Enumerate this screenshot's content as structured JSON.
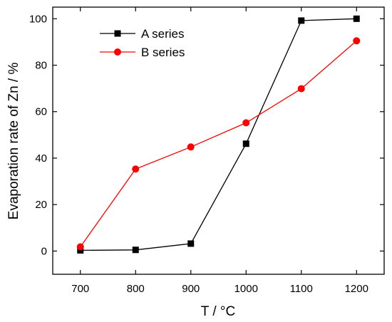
{
  "chart_data": {
    "type": "line",
    "xlabel": "T / °C",
    "ylabel": "Evaporation rate of Zn  / %",
    "xlim": [
      650,
      1250
    ],
    "ylim": [
      -10,
      105
    ],
    "x_ticks": [
      700,
      800,
      900,
      1000,
      1100,
      1200
    ],
    "y_ticks": [
      0,
      20,
      40,
      60,
      80,
      100
    ],
    "grid": false,
    "legend_position": "top-left",
    "series": [
      {
        "name": "A series",
        "color": "#000000",
        "marker": "square",
        "x": [
          700,
          800,
          900,
          1000,
          1100,
          1200
        ],
        "y": [
          0.3,
          0.5,
          3.2,
          46.2,
          99.2,
          100.0
        ]
      },
      {
        "name": "B series",
        "color": "#ff0000",
        "marker": "circle",
        "x": [
          700,
          800,
          900,
          1000,
          1100,
          1200
        ],
        "y": [
          1.8,
          35.3,
          44.8,
          55.2,
          69.9,
          90.5
        ]
      }
    ]
  }
}
